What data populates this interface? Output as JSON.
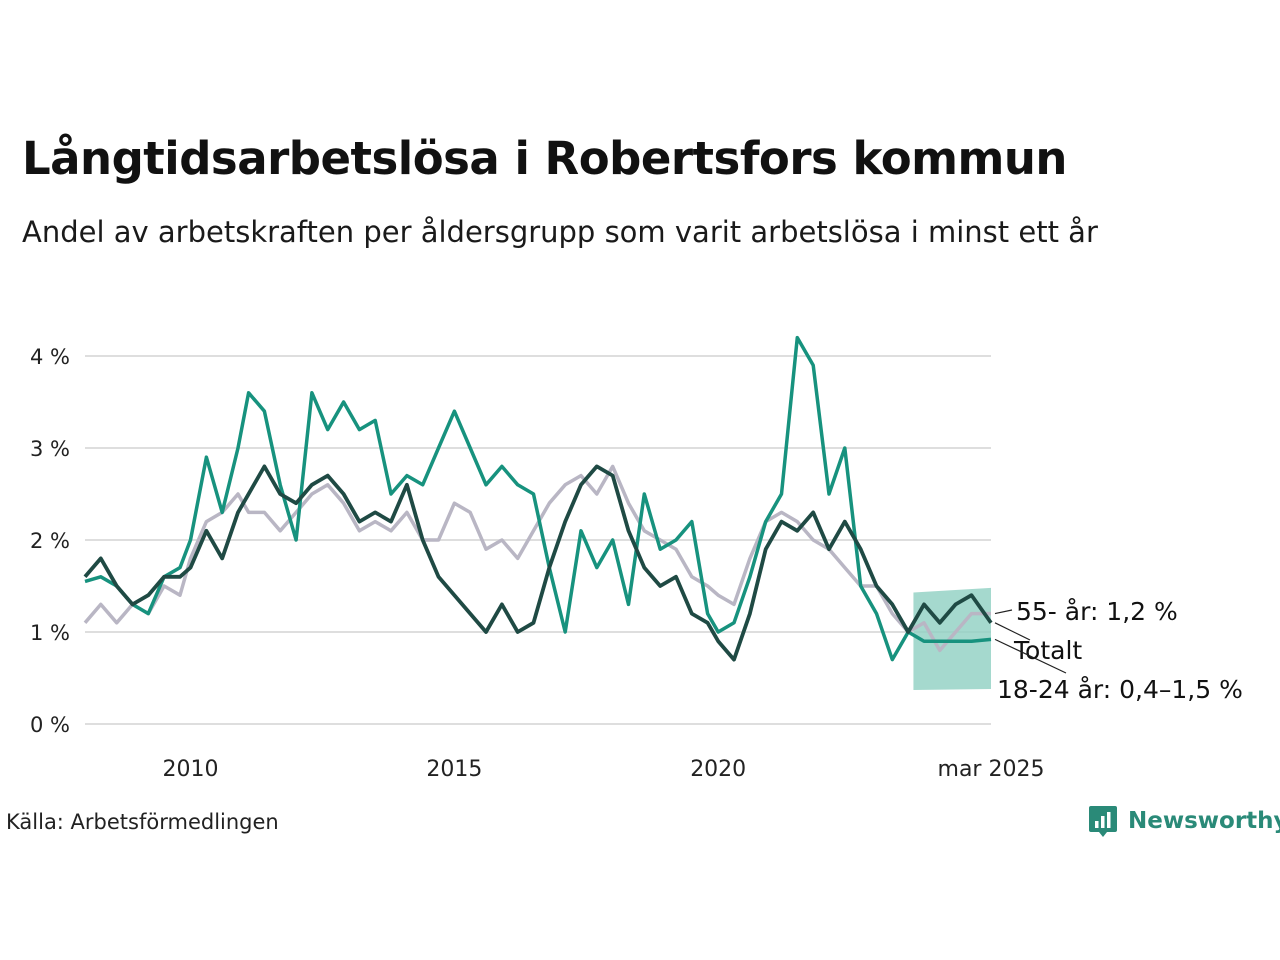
{
  "title": "Långtidsarbetslösa i Robertsfors kommun",
  "subtitle": "Andel av arbetskraften per åldersgrupp som varit arbetslösa i minst ett år",
  "source": "Källa: Arbetsförmedlingen",
  "brand": "Newsworthy",
  "colors": {
    "totalt": "#1f4a44",
    "age_18_24": "#17927e",
    "age_55": "#b9b6c4",
    "band": "#8fcfc2",
    "grid": "#dedede"
  },
  "chart_data": {
    "type": "line",
    "x_tick_labels": [
      "2010",
      "2015",
      "2020",
      "mar 2025"
    ],
    "x_ticks": [
      2010,
      2015,
      2020,
      2025.17
    ],
    "y_tick_labels": [
      "0 %",
      "1 %",
      "2 %",
      "3 %",
      "4 %"
    ],
    "y_ticks": [
      0,
      1,
      2,
      3,
      4
    ],
    "ylim": [
      0,
      4.7
    ],
    "xlim": [
      2008,
      2025.17
    ],
    "grid": true,
    "end_labels": {
      "age_55": "55- år: 1,2 %",
      "totalt": "Totalt",
      "age_18_24": "18-24 år: 0,4–1,5 %"
    },
    "uncertainty_band": {
      "series": "18-24 år",
      "x_start": 2023.7,
      "x_end": 2025.17,
      "lower_start": 0.37,
      "upper_start": 1.43,
      "lower_end": 0.38,
      "upper_end": 1.48
    },
    "series": [
      {
        "key": "age_55",
        "name": "55- år",
        "points": [
          [
            2008.0,
            1.1
          ],
          [
            2008.3,
            1.3
          ],
          [
            2008.6,
            1.1
          ],
          [
            2008.9,
            1.3
          ],
          [
            2009.2,
            1.2
          ],
          [
            2009.5,
            1.5
          ],
          [
            2009.8,
            1.4
          ],
          [
            2010.0,
            1.8
          ],
          [
            2010.3,
            2.2
          ],
          [
            2010.6,
            2.3
          ],
          [
            2010.9,
            2.5
          ],
          [
            2011.1,
            2.3
          ],
          [
            2011.4,
            2.3
          ],
          [
            2011.7,
            2.1
          ],
          [
            2012.0,
            2.3
          ],
          [
            2012.3,
            2.5
          ],
          [
            2012.6,
            2.6
          ],
          [
            2012.9,
            2.4
          ],
          [
            2013.2,
            2.1
          ],
          [
            2013.5,
            2.2
          ],
          [
            2013.8,
            2.1
          ],
          [
            2014.1,
            2.3
          ],
          [
            2014.4,
            2.0
          ],
          [
            2014.7,
            2.0
          ],
          [
            2015.0,
            2.4
          ],
          [
            2015.3,
            2.3
          ],
          [
            2015.6,
            1.9
          ],
          [
            2015.9,
            2.0
          ],
          [
            2016.2,
            1.8
          ],
          [
            2016.5,
            2.1
          ],
          [
            2016.8,
            2.4
          ],
          [
            2017.1,
            2.6
          ],
          [
            2017.4,
            2.7
          ],
          [
            2017.7,
            2.5
          ],
          [
            2018.0,
            2.8
          ],
          [
            2018.3,
            2.4
          ],
          [
            2018.6,
            2.1
          ],
          [
            2018.9,
            2.0
          ],
          [
            2019.2,
            1.9
          ],
          [
            2019.5,
            1.6
          ],
          [
            2019.8,
            1.5
          ],
          [
            2020.0,
            1.4
          ],
          [
            2020.3,
            1.3
          ],
          [
            2020.6,
            1.8
          ],
          [
            2020.9,
            2.2
          ],
          [
            2021.2,
            2.3
          ],
          [
            2021.5,
            2.2
          ],
          [
            2021.8,
            2.0
          ],
          [
            2022.1,
            1.9
          ],
          [
            2022.4,
            1.7
          ],
          [
            2022.7,
            1.5
          ],
          [
            2023.0,
            1.5
          ],
          [
            2023.3,
            1.2
          ],
          [
            2023.6,
            1.0
          ],
          [
            2023.9,
            1.1
          ],
          [
            2024.2,
            0.8
          ],
          [
            2024.5,
            1.0
          ],
          [
            2024.8,
            1.2
          ],
          [
            2025.17,
            1.2
          ]
        ]
      },
      {
        "key": "age_18_24",
        "name": "18-24 år",
        "points": [
          [
            2008.0,
            1.55
          ],
          [
            2008.3,
            1.6
          ],
          [
            2008.6,
            1.5
          ],
          [
            2008.9,
            1.3
          ],
          [
            2009.2,
            1.2
          ],
          [
            2009.5,
            1.6
          ],
          [
            2009.8,
            1.7
          ],
          [
            2010.0,
            2.0
          ],
          [
            2010.3,
            2.9
          ],
          [
            2010.6,
            2.3
          ],
          [
            2010.9,
            3.0
          ],
          [
            2011.1,
            3.6
          ],
          [
            2011.4,
            3.4
          ],
          [
            2011.7,
            2.6
          ],
          [
            2012.0,
            2.0
          ],
          [
            2012.3,
            3.6
          ],
          [
            2012.6,
            3.2
          ],
          [
            2012.9,
            3.5
          ],
          [
            2013.2,
            3.2
          ],
          [
            2013.5,
            3.3
          ],
          [
            2013.8,
            2.5
          ],
          [
            2014.1,
            2.7
          ],
          [
            2014.4,
            2.6
          ],
          [
            2014.7,
            3.0
          ],
          [
            2015.0,
            3.4
          ],
          [
            2015.3,
            3.0
          ],
          [
            2015.6,
            2.6
          ],
          [
            2015.9,
            2.8
          ],
          [
            2016.2,
            2.6
          ],
          [
            2016.5,
            2.5
          ],
          [
            2016.8,
            1.7
          ],
          [
            2017.1,
            1.0
          ],
          [
            2017.4,
            2.1
          ],
          [
            2017.7,
            1.7
          ],
          [
            2018.0,
            2.0
          ],
          [
            2018.3,
            1.3
          ],
          [
            2018.6,
            2.5
          ],
          [
            2018.9,
            1.9
          ],
          [
            2019.2,
            2.0
          ],
          [
            2019.5,
            2.2
          ],
          [
            2019.8,
            1.2
          ],
          [
            2020.0,
            1.0
          ],
          [
            2020.3,
            1.1
          ],
          [
            2020.6,
            1.6
          ],
          [
            2020.9,
            2.2
          ],
          [
            2021.2,
            2.5
          ],
          [
            2021.5,
            4.2
          ],
          [
            2021.8,
            3.9
          ],
          [
            2022.1,
            2.5
          ],
          [
            2022.4,
            3.0
          ],
          [
            2022.7,
            1.5
          ],
          [
            2023.0,
            1.2
          ],
          [
            2023.3,
            0.7
          ],
          [
            2023.6,
            1.0
          ],
          [
            2023.9,
            0.9
          ],
          [
            2024.2,
            0.9
          ],
          [
            2024.5,
            0.9
          ],
          [
            2024.8,
            0.9
          ],
          [
            2025.17,
            0.92
          ]
        ]
      },
      {
        "key": "totalt",
        "name": "Totalt",
        "points": [
          [
            2008.0,
            1.6
          ],
          [
            2008.3,
            1.8
          ],
          [
            2008.6,
            1.5
          ],
          [
            2008.9,
            1.3
          ],
          [
            2009.2,
            1.4
          ],
          [
            2009.5,
            1.6
          ],
          [
            2009.8,
            1.6
          ],
          [
            2010.0,
            1.7
          ],
          [
            2010.3,
            2.1
          ],
          [
            2010.6,
            1.8
          ],
          [
            2010.9,
            2.3
          ],
          [
            2011.1,
            2.5
          ],
          [
            2011.4,
            2.8
          ],
          [
            2011.7,
            2.5
          ],
          [
            2012.0,
            2.4
          ],
          [
            2012.3,
            2.6
          ],
          [
            2012.6,
            2.7
          ],
          [
            2012.9,
            2.5
          ],
          [
            2013.2,
            2.2
          ],
          [
            2013.5,
            2.3
          ],
          [
            2013.8,
            2.2
          ],
          [
            2014.1,
            2.6
          ],
          [
            2014.4,
            2.0
          ],
          [
            2014.7,
            1.6
          ],
          [
            2015.0,
            1.4
          ],
          [
            2015.3,
            1.2
          ],
          [
            2015.6,
            1.0
          ],
          [
            2015.9,
            1.3
          ],
          [
            2016.2,
            1.0
          ],
          [
            2016.5,
            1.1
          ],
          [
            2016.8,
            1.7
          ],
          [
            2017.1,
            2.2
          ],
          [
            2017.4,
            2.6
          ],
          [
            2017.7,
            2.8
          ],
          [
            2018.0,
            2.7
          ],
          [
            2018.3,
            2.1
          ],
          [
            2018.6,
            1.7
          ],
          [
            2018.9,
            1.5
          ],
          [
            2019.2,
            1.6
          ],
          [
            2019.5,
            1.2
          ],
          [
            2019.8,
            1.1
          ],
          [
            2020.0,
            0.9
          ],
          [
            2020.3,
            0.7
          ],
          [
            2020.6,
            1.2
          ],
          [
            2020.9,
            1.9
          ],
          [
            2021.2,
            2.2
          ],
          [
            2021.5,
            2.1
          ],
          [
            2021.8,
            2.3
          ],
          [
            2022.1,
            1.9
          ],
          [
            2022.4,
            2.2
          ],
          [
            2022.7,
            1.9
          ],
          [
            2023.0,
            1.5
          ],
          [
            2023.3,
            1.3
          ],
          [
            2023.6,
            1.0
          ],
          [
            2023.9,
            1.3
          ],
          [
            2024.2,
            1.1
          ],
          [
            2024.5,
            1.3
          ],
          [
            2024.8,
            1.4
          ],
          [
            2025.17,
            1.1
          ]
        ]
      }
    ]
  }
}
